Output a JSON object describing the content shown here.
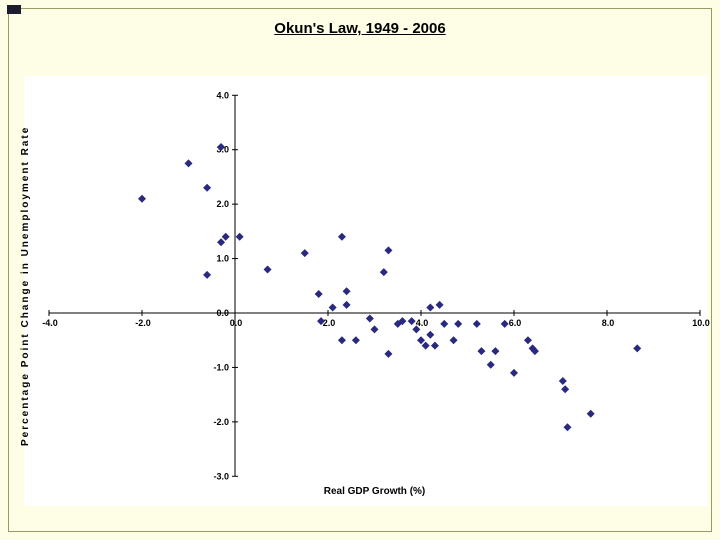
{
  "slide": {
    "title": "Okun's Law, 1949 - 2006"
  },
  "colors": {
    "slide_background": "#FEFEE6",
    "plot_background": "#FFFFFF",
    "marker": "#29297F",
    "axis": "#000000",
    "frame_border": "#9A9A66"
  },
  "chart_data": {
    "type": "scatter",
    "title": "Okun's Law, 1949 - 2006",
    "xlabel": "Real GDP Growth (%)",
    "ylabel": "Percentage Point Change in Unemployment Rate",
    "xlim": [
      -4.0,
      10.0
    ],
    "ylim": [
      -3.0,
      4.0
    ],
    "x_ticks": [
      -4.0,
      -2.0,
      0.0,
      2.0,
      4.0,
      6.0,
      8.0,
      10.0
    ],
    "y_ticks": [
      4.0,
      3.0,
      2.0,
      1.0,
      0.0,
      -1.0,
      -2.0,
      -3.0
    ],
    "grid": false,
    "legend": "none",
    "marker": "diamond",
    "points": [
      [
        -2.0,
        2.1
      ],
      [
        -1.0,
        2.75
      ],
      [
        -0.6,
        2.3
      ],
      [
        -0.3,
        3.05
      ],
      [
        -0.2,
        1.4
      ],
      [
        -0.3,
        1.3
      ],
      [
        -0.6,
        0.7
      ],
      [
        0.1,
        1.4
      ],
      [
        0.7,
        0.8
      ],
      [
        1.5,
        1.1
      ],
      [
        1.8,
        0.35
      ],
      [
        1.85,
        -0.15
      ],
      [
        2.1,
        0.1
      ],
      [
        2.3,
        1.4
      ],
      [
        2.4,
        0.4
      ],
      [
        2.4,
        0.15
      ],
      [
        2.3,
        -0.5
      ],
      [
        2.6,
        -0.5
      ],
      [
        2.9,
        -0.1
      ],
      [
        3.0,
        -0.3
      ],
      [
        3.3,
        1.15
      ],
      [
        3.2,
        0.75
      ],
      [
        3.3,
        -0.75
      ],
      [
        3.5,
        -0.2
      ],
      [
        3.6,
        -0.15
      ],
      [
        3.8,
        -0.15
      ],
      [
        3.9,
        -0.3
      ],
      [
        4.0,
        -0.5
      ],
      [
        4.1,
        -0.6
      ],
      [
        4.2,
        -0.4
      ],
      [
        4.2,
        0.1
      ],
      [
        4.3,
        -0.6
      ],
      [
        4.4,
        0.15
      ],
      [
        4.5,
        -0.2
      ],
      [
        4.7,
        -0.5
      ],
      [
        4.8,
        -0.2
      ],
      [
        5.2,
        -0.2
      ],
      [
        5.3,
        -0.7
      ],
      [
        5.5,
        -0.95
      ],
      [
        5.6,
        -0.7
      ],
      [
        5.8,
        -0.2
      ],
      [
        6.0,
        -1.1
      ],
      [
        6.3,
        -0.5
      ],
      [
        6.4,
        -0.65
      ],
      [
        6.45,
        -0.7
      ],
      [
        7.05,
        -1.25
      ],
      [
        7.1,
        -1.4
      ],
      [
        7.15,
        -2.1
      ],
      [
        7.65,
        -1.85
      ],
      [
        8.65,
        -0.65
      ]
    ]
  }
}
